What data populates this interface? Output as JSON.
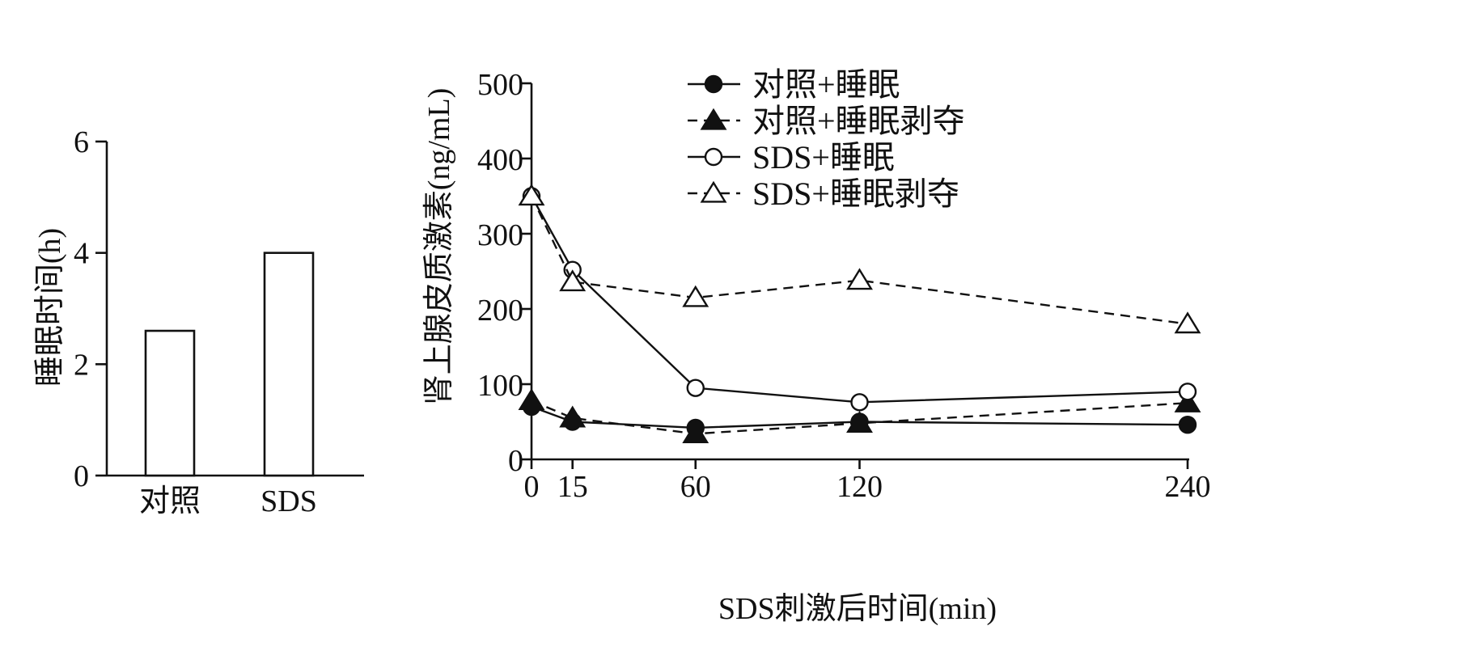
{
  "chart_data": [
    {
      "type": "bar",
      "categories": [
        "对照",
        "SDS"
      ],
      "values": [
        2.6,
        4.0
      ],
      "ylabel": "睡眠时间(h)",
      "xlabel": "",
      "ylim": [
        0,
        6
      ],
      "yticks": [
        "0",
        "2",
        "4",
        "6"
      ],
      "grid": false
    },
    {
      "type": "line",
      "x": [
        0,
        15,
        60,
        120,
        240
      ],
      "xticks": [
        "0",
        "15",
        "60",
        "120",
        "240"
      ],
      "xlabel": "SDS刺激后时间(min)",
      "ylabel": "肾上腺皮质激素(ng/mL)",
      "ylim": [
        0,
        500
      ],
      "yticks": [
        "0",
        "100",
        "200",
        "300",
        "400",
        "500"
      ],
      "grid": false,
      "legend_position": "top",
      "series": [
        {
          "name": "对照+睡眠",
          "values": [
            70,
            50,
            42,
            50,
            46
          ],
          "marker": "filled-circle",
          "line_style": "solid",
          "color": "#111111"
        },
        {
          "name": "对照+睡眠剥夺",
          "values": [
            78,
            55,
            34,
            48,
            75
          ],
          "marker": "filled-triangle",
          "line_style": "dashed",
          "color": "#111111"
        },
        {
          "name": "SDS+睡眠",
          "values": [
            350,
            252,
            95,
            76,
            90
          ],
          "marker": "open-circle",
          "line_style": "solid",
          "color": "#111111"
        },
        {
          "name": "SDS+睡眠剥夺",
          "values": [
            350,
            236,
            215,
            238,
            180
          ],
          "marker": "open-triangle",
          "line_style": "dashed",
          "color": "#111111"
        }
      ]
    }
  ]
}
